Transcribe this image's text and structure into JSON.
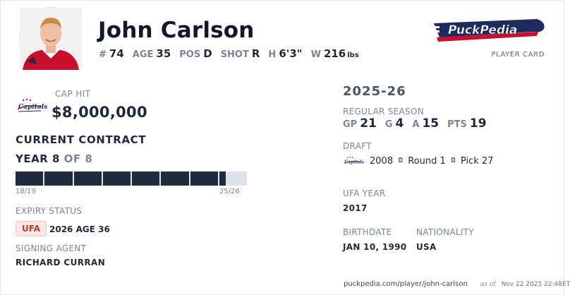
{
  "player": {
    "name": "John Carlson",
    "stats": [
      {
        "label": "#",
        "value": "74"
      },
      {
        "label": "AGE",
        "value": "35"
      },
      {
        "label": "POS",
        "value": "D"
      },
      {
        "label": "SHOT",
        "value": "R"
      },
      {
        "label": "H",
        "value": "6'3\""
      },
      {
        "label": "W",
        "value": "216",
        "unit": "lbs"
      }
    ]
  },
  "brand": {
    "logo_text": "PuckPedia",
    "card_label": "PLAYER CARD"
  },
  "contract": {
    "cap_hit_label": "CAP HIT",
    "cap_hit_value": "$8,000,000",
    "section_title": "CURRENT CONTRACT",
    "year_word": "YEAR 8",
    "year_of": "OF 8",
    "years_total": 8,
    "progress": 0.91,
    "start_season": "18/19",
    "end_season": "25/26",
    "expiry_label": "EXPIRY STATUS",
    "expiry_badge": "UFA",
    "expiry_detail": "2026 AGE 36",
    "agent_label": "SIGNING AGENT",
    "agent_name": "RICHARD CURRAN"
  },
  "season": {
    "title": "2025-26",
    "label": "REGULAR SEASON",
    "stats": [
      {
        "label": "GP",
        "value": "21"
      },
      {
        "label": "G",
        "value": "4"
      },
      {
        "label": "A",
        "value": "15"
      },
      {
        "label": "PTS",
        "value": "19"
      }
    ]
  },
  "draft": {
    "label": "DRAFT",
    "year": "2008",
    "round": "Round 1",
    "pick": "Pick 27"
  },
  "ufa": {
    "label": "UFA YEAR",
    "value": "2017"
  },
  "birth": {
    "label": "BIRTHDATE",
    "value": "JAN 10, 1990"
  },
  "nationality": {
    "label": "NATIONALITY",
    "value": "USA"
  },
  "footer": {
    "url": "puckpedia.com/player/john-carlson",
    "as_of": "as of",
    "timestamp": "Nov 22 2025 22:48ET"
  },
  "colors": {
    "navy": "#1f2b3d",
    "team_red": "#c8102e",
    "badge_bg": "#fde7e7",
    "badge_text": "#c0392b"
  },
  "icons": {
    "avatar": "player-headshot",
    "team": "washington-capitals-logo"
  }
}
